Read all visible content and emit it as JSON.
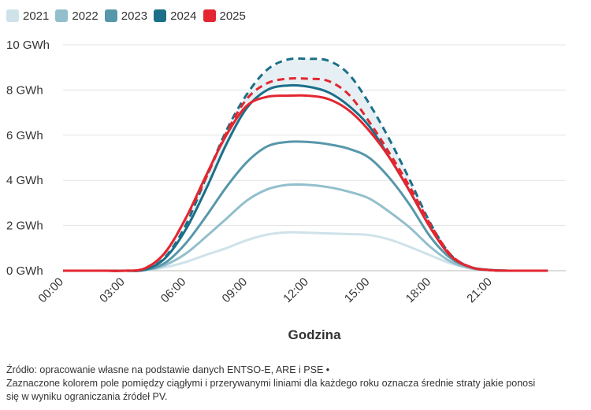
{
  "chart_data": {
    "type": "line",
    "xlabel": "Godzina",
    "ylabel": "",
    "x_ticks": [
      "00:00",
      "03:00",
      "06:00",
      "09:00",
      "12:00",
      "15:00",
      "18:00",
      "21:00"
    ],
    "y_ticks": [
      "0 GWh",
      "2 GWh",
      "4 GWh",
      "6 GWh",
      "8 GWh",
      "10 GWh"
    ],
    "ylim": [
      0,
      10
    ],
    "xlim": [
      0,
      23.75
    ],
    "grid": "horizontal",
    "legend_position": "top-left",
    "legend": [
      {
        "name": "2021",
        "color": "#cfe2ea"
      },
      {
        "name": "2022",
        "color": "#93bfcc"
      },
      {
        "name": "2023",
        "color": "#5797aa"
      },
      {
        "name": "2024",
        "color": "#1b6f88"
      },
      {
        "name": "2025",
        "color": "#e3262f"
      }
    ],
    "x": [
      0,
      1,
      2,
      3,
      4,
      5,
      6,
      7,
      8,
      9,
      10,
      11,
      12,
      13,
      14,
      15,
      16,
      17,
      18,
      19,
      20,
      21,
      22,
      23,
      23.75
    ],
    "series": [
      {
        "name": "2021",
        "color": "#cfe2ea",
        "style": "solid",
        "values": [
          0,
          0,
          0,
          0,
          0.02,
          0.15,
          0.38,
          0.7,
          1.0,
          1.35,
          1.6,
          1.7,
          1.68,
          1.65,
          1.62,
          1.58,
          1.38,
          1.05,
          0.68,
          0.32,
          0.1,
          0.02,
          0,
          0,
          0
        ]
      },
      {
        "name": "2022",
        "color": "#93bfcc",
        "style": "solid",
        "values": [
          0,
          0,
          0,
          0,
          0.02,
          0.25,
          0.75,
          1.5,
          2.3,
          3.1,
          3.6,
          3.8,
          3.8,
          3.7,
          3.5,
          3.2,
          2.6,
          1.9,
          1.05,
          0.4,
          0.1,
          0.02,
          0,
          0,
          0
        ]
      },
      {
        "name": "2023",
        "color": "#5797aa",
        "style": "solid",
        "values": [
          0,
          0,
          0,
          0,
          0.03,
          0.35,
          1.2,
          2.4,
          3.7,
          4.8,
          5.5,
          5.7,
          5.7,
          5.6,
          5.4,
          5.0,
          4.1,
          2.9,
          1.5,
          0.55,
          0.15,
          0.03,
          0,
          0,
          0
        ]
      },
      {
        "name": "2024",
        "color": "#1b6f88",
        "style": "solid",
        "values": [
          0,
          0,
          0,
          0,
          0.05,
          0.55,
          1.8,
          3.6,
          5.6,
          7.2,
          8.0,
          8.2,
          8.15,
          7.9,
          7.3,
          6.4,
          5.0,
          3.5,
          1.9,
          0.65,
          0.15,
          0.02,
          0,
          0,
          0
        ]
      },
      {
        "name": "2024",
        "color": "#1b6f88",
        "style": "dashed",
        "values": [
          0,
          0,
          0,
          0,
          0.05,
          0.6,
          2.0,
          4.1,
          6.2,
          7.8,
          8.9,
          9.35,
          9.38,
          9.3,
          8.7,
          7.4,
          5.8,
          4.0,
          2.1,
          0.7,
          0.15,
          0.02,
          0,
          0,
          0
        ]
      },
      {
        "name": "2025",
        "color": "#e3262f",
        "style": "dashed",
        "values": [
          0,
          0,
          0,
          0,
          0.1,
          0.8,
          2.3,
          4.1,
          6.1,
          7.6,
          8.3,
          8.5,
          8.5,
          8.4,
          7.8,
          6.6,
          5.2,
          3.7,
          2.05,
          0.7,
          0.15,
          0.02,
          0,
          0,
          0
        ]
      },
      {
        "name": "2025",
        "color": "#e3262f",
        "style": "solid",
        "values": [
          0,
          0,
          0,
          0,
          0.1,
          0.8,
          2.3,
          4.2,
          6.0,
          7.3,
          7.7,
          7.75,
          7.75,
          7.6,
          7.1,
          6.2,
          5.0,
          3.5,
          1.9,
          0.65,
          0.15,
          0.02,
          0,
          0,
          0
        ]
      }
    ],
    "band_fill": "#e6f0f4"
  },
  "source": {
    "line1": "Źródło: opracowanie własne na podstawie danych ENTSO-E, ARE i PSE •",
    "line2": "Zaznaczone kolorem pole pomiędzy ciągłymi i przerywanymi liniami dla każdego roku oznacza średnie straty jakie ponosi",
    "line3": "się w wyniku ograniczania źródeł PV."
  }
}
